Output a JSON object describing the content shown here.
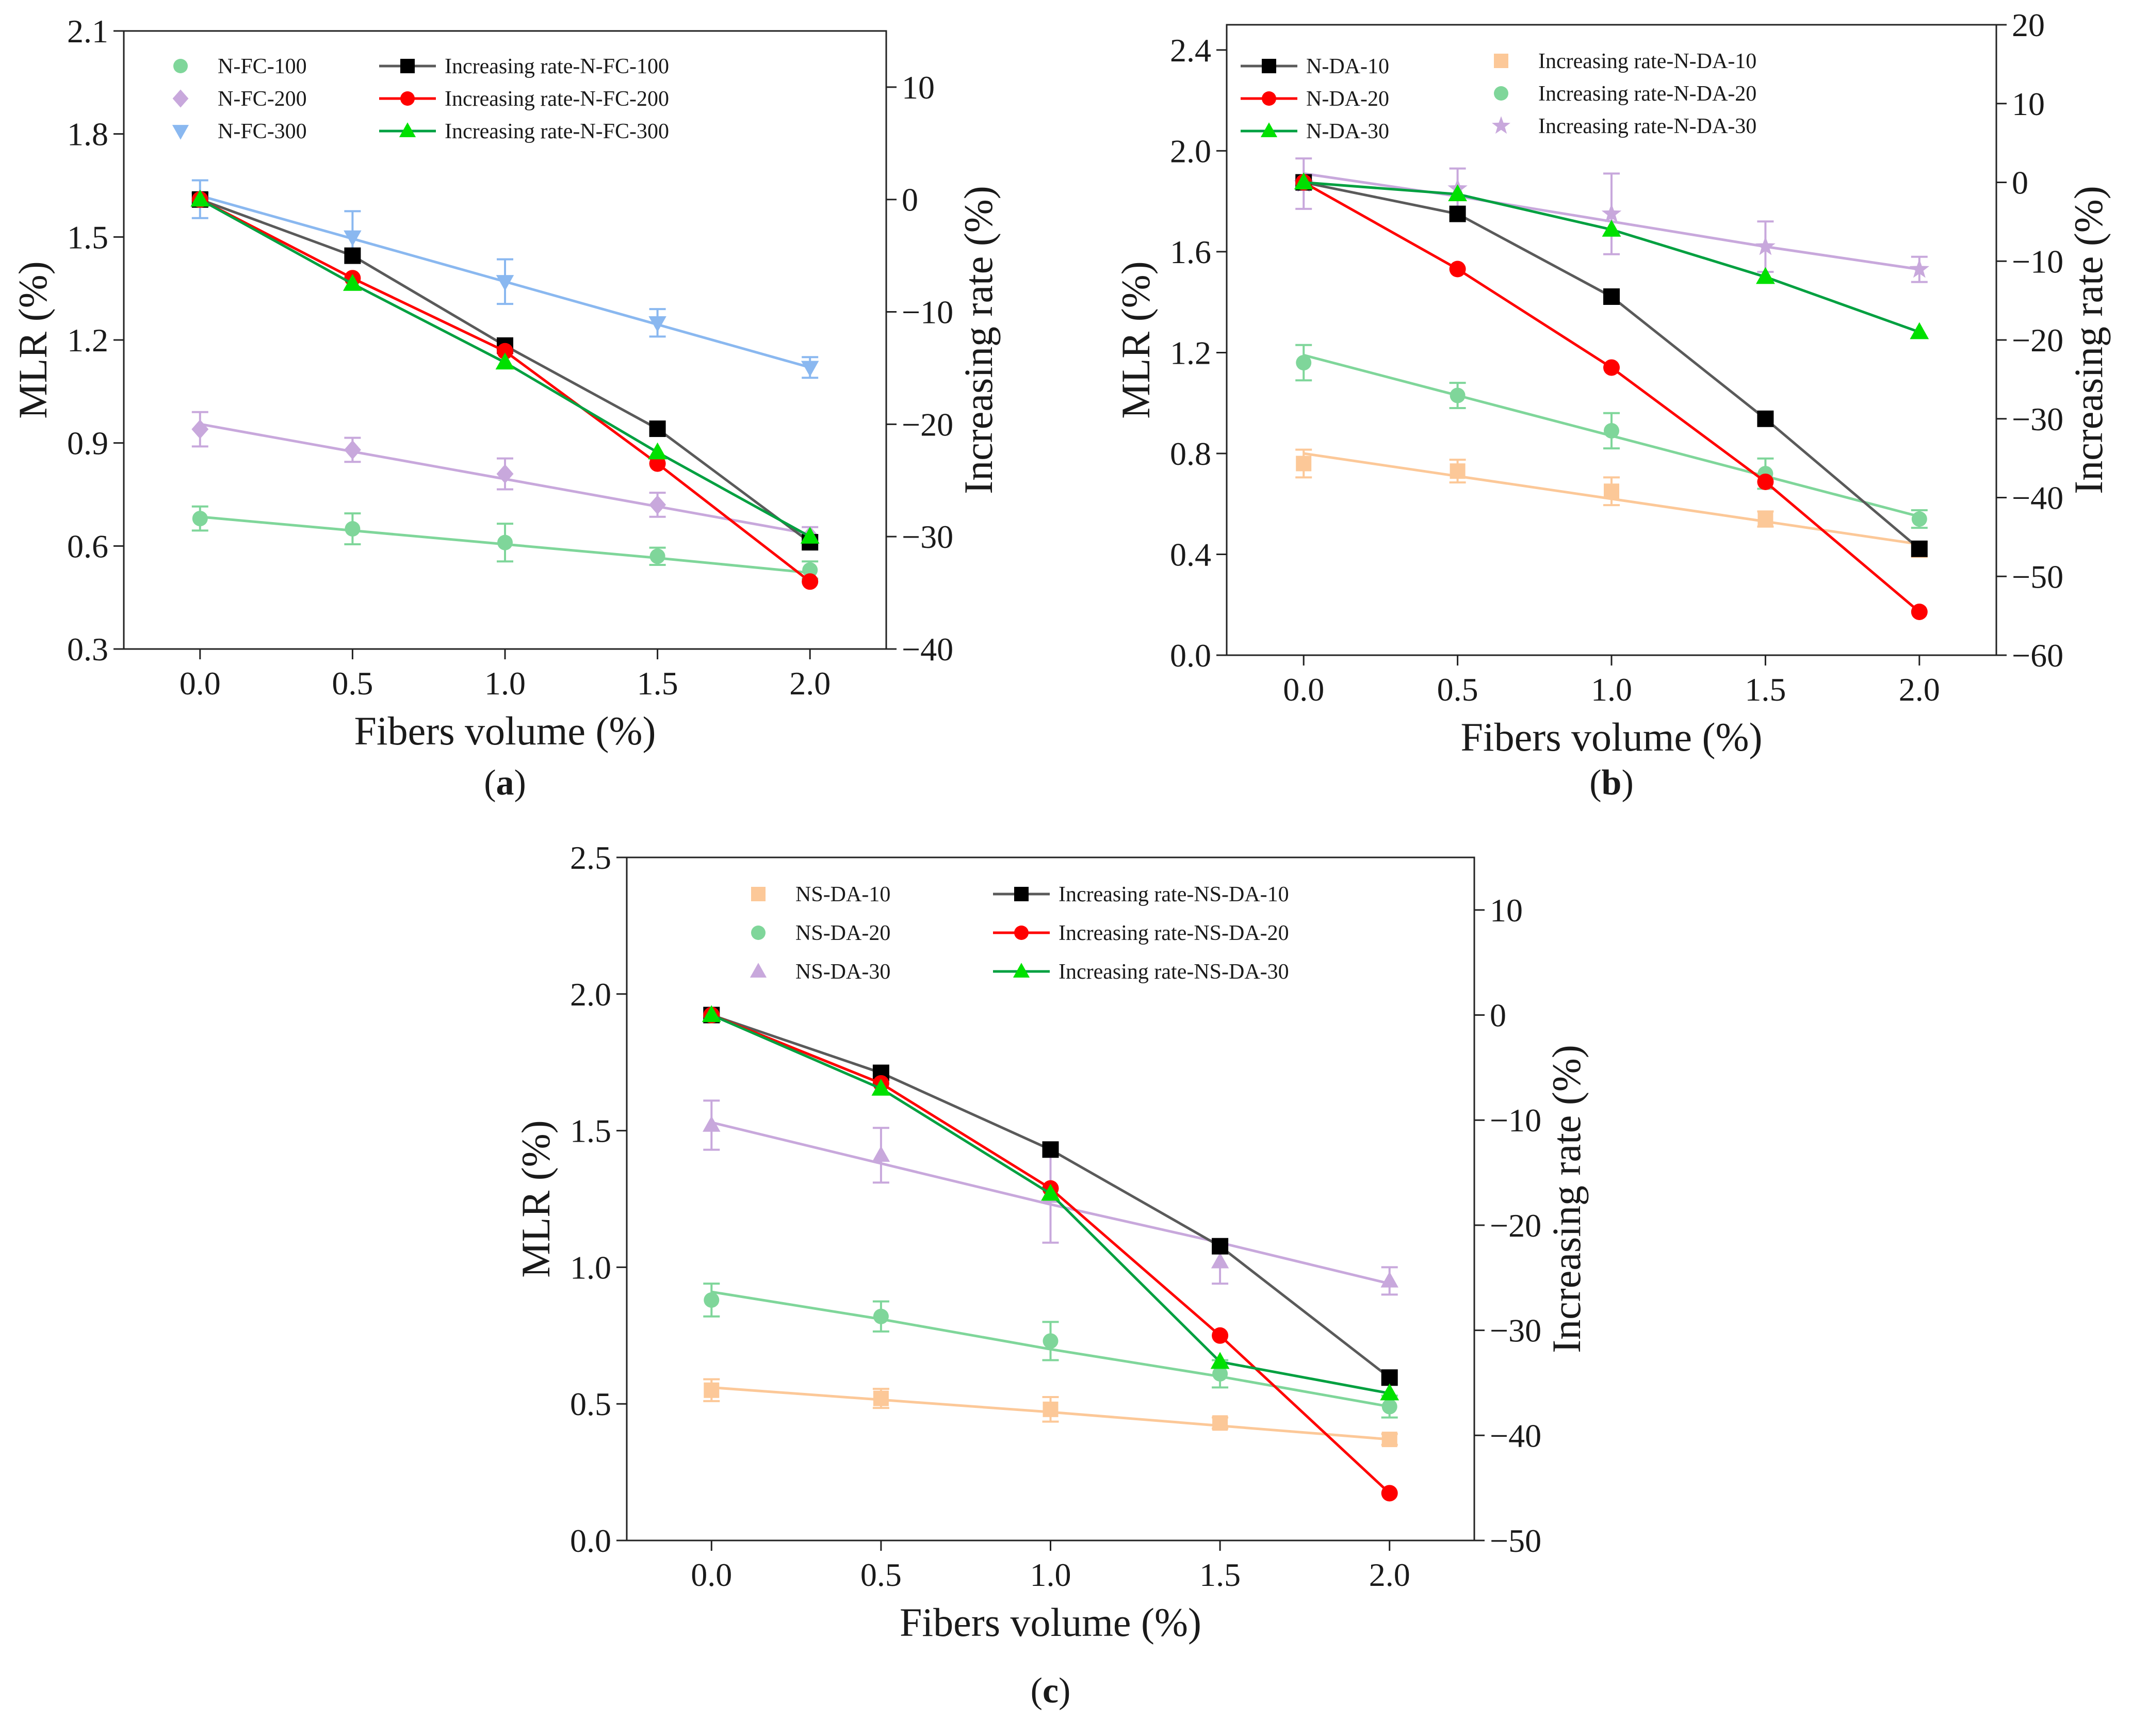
{
  "chart_data": [
    {
      "type": "line",
      "panel_label_pre": "(",
      "panel_label": "a",
      "panel_label_post": ")",
      "xlabel": "Fibers volume (%)",
      "ylabel": "MLR (%)",
      "y2label": "Increasing rate (%)",
      "x": [
        0.0,
        0.5,
        1.0,
        1.5,
        2.0
      ],
      "x_ticks": [
        "0.0",
        "0.5",
        "1.0",
        "1.5",
        "2.0"
      ],
      "xlim": [
        -0.25,
        2.25
      ],
      "ylim": [
        0.3,
        2.1
      ],
      "y_ticks": [
        "0.3",
        "0.6",
        "0.9",
        "1.2",
        "1.5",
        "1.8",
        "2.1"
      ],
      "y2lim": [
        -40,
        15
      ],
      "y2_ticks": [
        "-40",
        "-30",
        "-20",
        "-10",
        "0",
        "10"
      ],
      "mlr_series": [
        {
          "name": "N-FC-100",
          "color": "#7fd69a",
          "marker": "circle",
          "values": [
            0.68,
            0.65,
            0.61,
            0.57,
            0.53
          ],
          "errors": [
            0.035,
            0.045,
            0.055,
            0.025,
            0.025
          ],
          "fit": [
            0.685,
            0.645,
            0.605,
            0.565,
            0.522
          ]
        },
        {
          "name": "N-FC-200",
          "color": "#c8a8dc",
          "marker": "diamond",
          "values": [
            0.94,
            0.88,
            0.81,
            0.72,
            0.63
          ],
          "errors": [
            0.05,
            0.035,
            0.045,
            0.035,
            0.025
          ],
          "fit": [
            0.955,
            0.875,
            0.795,
            0.715,
            0.635
          ]
        },
        {
          "name": "N-FC-300",
          "color": "#8ab8f0",
          "marker": "triangle-down",
          "values": [
            1.61,
            1.5,
            1.37,
            1.25,
            1.12
          ],
          "errors": [
            0.055,
            0.075,
            0.065,
            0.04,
            0.03
          ],
          "fit": [
            1.62,
            1.495,
            1.37,
            1.245,
            1.12
          ]
        }
      ],
      "rate_series": [
        {
          "name": "Increasing rate-N-FC-100",
          "color": "#000000",
          "line_color": "#5a5a5a",
          "marker": "square",
          "values": [
            0,
            -5,
            -13,
            -20.4,
            -30.5
          ]
        },
        {
          "name": "Increasing rate-N-FC-200",
          "color": "#ff0000",
          "line_color": "#ff0000",
          "marker": "circle",
          "values": [
            0,
            -7,
            -13.5,
            -23.5,
            -34
          ]
        },
        {
          "name": "Increasing rate-N-FC-300",
          "color": "#00e000",
          "line_color": "#00a040",
          "marker": "triangle",
          "values": [
            0,
            -7.5,
            -14.5,
            -22.5,
            -30
          ]
        }
      ]
    },
    {
      "type": "line",
      "panel_label_pre": "(",
      "panel_label": "b",
      "panel_label_post": ")",
      "xlabel": "Fibers volume (%)",
      "ylabel": "MLR (%)",
      "y2label": "Increasing rate (%)",
      "x": [
        0.0,
        0.5,
        1.0,
        1.5,
        2.0
      ],
      "x_ticks": [
        "0.0",
        "0.5",
        "1.0",
        "1.5",
        "2.0"
      ],
      "xlim": [
        -0.25,
        2.25
      ],
      "ylim": [
        0.0,
        2.5
      ],
      "y_ticks": [
        "0.0",
        "0.4",
        "0.8",
        "1.2",
        "1.6",
        "2.0",
        "2.4"
      ],
      "y2lim": [
        -60,
        20
      ],
      "y2_ticks": [
        "-60",
        "-50",
        "-40",
        "-30",
        "-20",
        "-10",
        "0",
        "10",
        "20"
      ],
      "rate_series": [
        {
          "name": "N-DA-10",
          "color": "#000000",
          "line_color": "#5a5a5a",
          "marker": "square",
          "values": [
            0,
            -4,
            -14.5,
            -30,
            -46.5
          ]
        },
        {
          "name": "N-DA-20",
          "color": "#ff0000",
          "line_color": "#ff0000",
          "marker": "circle",
          "values": [
            0,
            -11,
            -23.5,
            -38,
            -54.5
          ]
        },
        {
          "name": "N-DA-30",
          "color": "#00e000",
          "line_color": "#00a040",
          "marker": "triangle",
          "values": [
            0,
            -1.5,
            -6,
            -12,
            -19
          ]
        }
      ],
      "mlr_series": [
        {
          "name": "Increasing rate-N-DA-10",
          "color": "#fcc898",
          "marker": "square",
          "values": [
            0.76,
            0.73,
            0.65,
            0.54,
            0.42
          ],
          "errors": [
            0.055,
            0.045,
            0.055,
            0.03,
            0.03
          ],
          "fit": [
            0.8,
            0.71,
            0.62,
            0.53,
            0.44
          ]
        },
        {
          "name": "Increasing rate-N-DA-20",
          "color": "#7fd69a",
          "marker": "circle",
          "values": [
            1.16,
            1.03,
            0.89,
            0.72,
            0.54
          ],
          "errors": [
            0.07,
            0.05,
            0.07,
            0.06,
            0.035
          ],
          "fit": [
            1.19,
            1.03,
            0.87,
            0.71,
            0.55
          ]
        },
        {
          "name": "Increasing rate-N-DA-30",
          "color": "#c8a8dc",
          "marker": "star",
          "values": [
            1.87,
            1.85,
            1.75,
            1.62,
            1.53
          ],
          "errors": [
            0.1,
            0.08,
            0.16,
            0.1,
            0.05
          ],
          "fit": [
            1.91,
            1.82,
            1.72,
            1.62,
            1.53
          ]
        }
      ]
    },
    {
      "type": "line",
      "panel_label_pre": "(",
      "panel_label": "c",
      "panel_label_post": ")",
      "xlabel": "Fibers volume (%)",
      "ylabel": "MLR (%)",
      "y2label": "Increasing rate (%)",
      "x": [
        0.0,
        0.5,
        1.0,
        1.5,
        2.0
      ],
      "x_ticks": [
        "0.0",
        "0.5",
        "1.0",
        "1.5",
        "2.0"
      ],
      "xlim": [
        -0.25,
        2.25
      ],
      "ylim": [
        0.0,
        2.5
      ],
      "y_ticks": [
        "0.0",
        "0.5",
        "1.0",
        "1.5",
        "2.0",
        "2.5"
      ],
      "y2lim": [
        -50,
        15
      ],
      "y2_ticks": [
        "-50",
        "-40",
        "-30",
        "-20",
        "-10",
        "0",
        "10"
      ],
      "mlr_series": [
        {
          "name": "NS-DA-10",
          "color": "#fcc898",
          "marker": "square",
          "values": [
            0.55,
            0.52,
            0.48,
            0.43,
            0.37
          ],
          "errors": [
            0.04,
            0.035,
            0.045,
            0.02,
            0.02
          ],
          "fit": [
            0.56,
            0.515,
            0.47,
            0.42,
            0.37
          ]
        },
        {
          "name": "NS-DA-20",
          "color": "#7fd69a",
          "marker": "circle",
          "values": [
            0.88,
            0.82,
            0.73,
            0.61,
            0.49
          ],
          "errors": [
            0.06,
            0.055,
            0.07,
            0.05,
            0.04
          ],
          "fit": [
            0.91,
            0.81,
            0.7,
            0.6,
            0.49
          ]
        },
        {
          "name": "NS-DA-30",
          "color": "#c8a8dc",
          "marker": "triangle",
          "values": [
            1.52,
            1.41,
            1.26,
            1.02,
            0.95
          ],
          "errors": [
            0.09,
            0.1,
            0.17,
            0.08,
            0.05
          ],
          "fit": [
            1.53,
            1.38,
            1.23,
            1.09,
            0.94
          ]
        }
      ],
      "rate_series": [
        {
          "name": "Increasing rate-NS-DA-10",
          "color": "#000000",
          "line_color": "#5a5a5a",
          "marker": "square",
          "values": [
            0,
            -5.5,
            -12.8,
            -22,
            -34.5
          ]
        },
        {
          "name": "Increasing rate-NS-DA-20",
          "color": "#ff0000",
          "line_color": "#ff0000",
          "marker": "circle",
          "values": [
            0,
            -6.5,
            -16.5,
            -30.5,
            -45.5
          ]
        },
        {
          "name": "Increasing rate-NS-DA-30",
          "color": "#00e000",
          "line_color": "#00a040",
          "marker": "triangle",
          "values": [
            0,
            -7,
            -17,
            -33,
            -36
          ]
        }
      ]
    }
  ]
}
